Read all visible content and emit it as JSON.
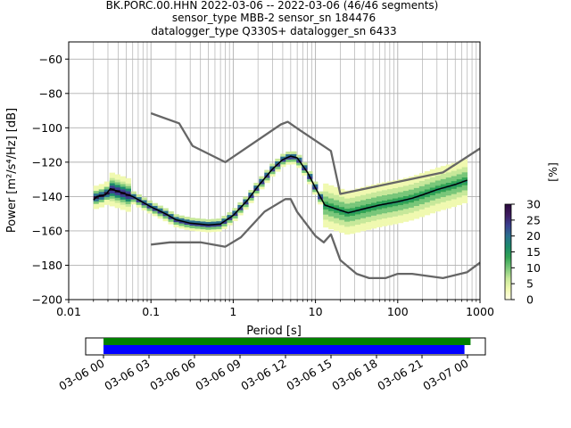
{
  "chart_data": {
    "type": "heatmap",
    "title_lines": [
      "BK.PORC.00.HHN   2022-03-06 -- 2022-03-06  (46/46 segments)",
      "sensor_type MBB-2 sensor_sn 184476",
      "datalogger_type Q330S+ datalogger_sn 6433"
    ],
    "xlabel": "Period [s]",
    "ylabel": "Power [m²/s⁴/Hz] [dB]",
    "x_scale": "log",
    "xlim": [
      0.01,
      1000
    ],
    "ylim": [
      -200,
      -50
    ],
    "x_ticks": [
      {
        "value": 0.01,
        "label": "0.01"
      },
      {
        "value": 0.1,
        "label": "0.1"
      },
      {
        "value": 1,
        "label": "1"
      },
      {
        "value": 10,
        "label": "10"
      },
      {
        "value": 100,
        "label": "100"
      },
      {
        "value": 1000,
        "label": "1000"
      }
    ],
    "y_ticks": [
      {
        "value": -60,
        "label": "−60"
      },
      {
        "value": -80,
        "label": "−80"
      },
      {
        "value": -100,
        "label": "−100"
      },
      {
        "value": -120,
        "label": "−120"
      },
      {
        "value": -140,
        "label": "−140"
      },
      {
        "value": -160,
        "label": "−160"
      },
      {
        "value": -180,
        "label": "−180"
      },
      {
        "value": -200,
        "label": "−200"
      }
    ],
    "grid": true,
    "colorbar": {
      "label": "[%]",
      "min": 0,
      "max": 30,
      "ticks": [
        {
          "value": 0,
          "label": "0"
        },
        {
          "value": 5,
          "label": "5"
        },
        {
          "value": 10,
          "label": "10"
        },
        {
          "value": 15,
          "label": "15"
        },
        {
          "value": 20,
          "label": "20"
        },
        {
          "value": 25,
          "label": "25"
        },
        {
          "value": 30,
          "label": "30"
        }
      ],
      "colors": [
        "#ffffe5",
        "#f0f9b0",
        "#c7e89a",
        "#78c679",
        "#31a354",
        "#1b8a6b",
        "#2a6f8e",
        "#3a3f8f",
        "#3d1a5f",
        "#2b0a3d"
      ]
    },
    "series": [
      {
        "role": "noise-model-high",
        "color": "#666666",
        "points": [
          [
            0.1,
            -91.5
          ],
          [
            0.22,
            -97.4
          ],
          [
            0.32,
            -110.5
          ],
          [
            0.8,
            -120
          ],
          [
            3.8,
            -98
          ],
          [
            4.6,
            -96.5
          ],
          [
            6.3,
            -101
          ],
          [
            15.4,
            -113.5
          ],
          [
            20,
            -138.5
          ],
          [
            354.8,
            -126
          ],
          [
            1000,
            -112
          ]
        ]
      },
      {
        "role": "noise-model-low",
        "color": "#666666",
        "points": [
          [
            0.1,
            -168
          ],
          [
            0.17,
            -166.7
          ],
          [
            0.4,
            -166.7
          ],
          [
            0.8,
            -169.2
          ],
          [
            1.24,
            -163.7
          ],
          [
            2.4,
            -148.8
          ],
          [
            4.3,
            -141.5
          ],
          [
            5.0,
            -141.5
          ],
          [
            6.0,
            -149
          ],
          [
            10.0,
            -163
          ],
          [
            12.6,
            -166.7
          ],
          [
            15.4,
            -162
          ],
          [
            20,
            -177
          ],
          [
            31.6,
            -185
          ],
          [
            45,
            -187.5
          ],
          [
            70.8,
            -187.5
          ],
          [
            100,
            -185
          ],
          [
            150,
            -185
          ],
          [
            354.8,
            -187.5
          ],
          [
            700,
            -184
          ],
          [
            1000,
            -178.5
          ]
        ]
      },
      {
        "role": "median",
        "color": "#000000",
        "points": [
          [
            0.02,
            -142
          ],
          [
            0.022,
            -140
          ],
          [
            0.028,
            -139
          ],
          [
            0.032,
            -135.5
          ],
          [
            0.04,
            -137
          ],
          [
            0.06,
            -140
          ],
          [
            0.1,
            -146
          ],
          [
            0.15,
            -150
          ],
          [
            0.2,
            -153.5
          ],
          [
            0.3,
            -155.5
          ],
          [
            0.5,
            -156.5
          ],
          [
            0.7,
            -156
          ],
          [
            1,
            -151
          ],
          [
            1.5,
            -142
          ],
          [
            2,
            -134
          ],
          [
            3,
            -124
          ],
          [
            4,
            -118.5
          ],
          [
            5,
            -116.5
          ],
          [
            6,
            -117.5
          ],
          [
            8,
            -126
          ],
          [
            10,
            -135
          ],
          [
            13,
            -145
          ],
          [
            20,
            -148
          ],
          [
            25,
            -149.5
          ],
          [
            30,
            -148.5
          ],
          [
            40,
            -147
          ],
          [
            60,
            -145
          ],
          [
            100,
            -143
          ],
          [
            150,
            -141
          ],
          [
            200,
            -139
          ],
          [
            300,
            -136
          ],
          [
            500,
            -133
          ],
          [
            700,
            -130.5
          ]
        ]
      }
    ],
    "heatmap_spread": "green-yellow cells spread ±3–12 dB around the median, widest beyond 10 s"
  },
  "time_panel": {
    "xlim": [
      "03-06 00",
      "03-07 02"
    ],
    "ticks": [
      "03-06 00",
      "03-06 03",
      "03-06 06",
      "03-06 09",
      "03-06 12",
      "03-06 15",
      "03-06 18",
      "03-06 21",
      "03-07 00"
    ],
    "bars": [
      {
        "color": "#008000",
        "start_h": 0.0,
        "end_h": 24.2
      },
      {
        "color": "#0000ff",
        "start_h": 0.0,
        "end_h": 23.8
      }
    ]
  }
}
